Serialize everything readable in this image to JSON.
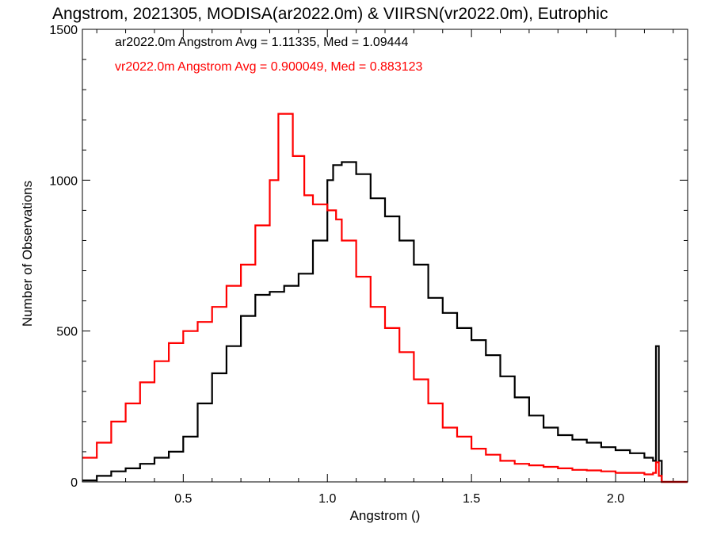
{
  "chart_data": {
    "type": "line",
    "title": "Angstrom, 2021305, MODISA(ar2022.0m) & VIIRSN(vr2022.0m), Eutrophic",
    "xlabel": "Angstrom ()",
    "ylabel": "Number of Observations",
    "xlim": [
      0.15,
      2.25
    ],
    "ylim": [
      0,
      1500
    ],
    "xticks": [
      0.5,
      1.0,
      1.5,
      2.0
    ],
    "xtick_labels": [
      "0.5",
      "1.0",
      "1.5",
      "2.0"
    ],
    "yticks": [
      0,
      500,
      1000,
      1500
    ],
    "ytick_labels": [
      "0",
      "500",
      "1000",
      "1500"
    ],
    "grid": false,
    "step": true,
    "annotations": [
      {
        "text": "ar2022.0m Angstrom Avg = 1.11335, Med = 1.09444",
        "color": "#000000"
      },
      {
        "text": "vr2022.0m Angstrom Avg = 0.900049, Med = 0.883123",
        "color": "#ff0000"
      }
    ],
    "series": [
      {
        "color": "#000000",
        "points": [
          [
            0.15,
            5
          ],
          [
            0.2,
            20
          ],
          [
            0.25,
            35
          ],
          [
            0.3,
            45
          ],
          [
            0.35,
            60
          ],
          [
            0.4,
            80
          ],
          [
            0.45,
            100
          ],
          [
            0.5,
            150
          ],
          [
            0.55,
            260
          ],
          [
            0.6,
            360
          ],
          [
            0.65,
            450
          ],
          [
            0.7,
            550
          ],
          [
            0.75,
            620
          ],
          [
            0.8,
            630
          ],
          [
            0.85,
            650
          ],
          [
            0.9,
            690
          ],
          [
            0.95,
            800
          ],
          [
            1.0,
            1000
          ],
          [
            1.02,
            1050
          ],
          [
            1.05,
            1060
          ],
          [
            1.1,
            1020
          ],
          [
            1.15,
            940
          ],
          [
            1.2,
            880
          ],
          [
            1.25,
            800
          ],
          [
            1.3,
            720
          ],
          [
            1.35,
            610
          ],
          [
            1.4,
            560
          ],
          [
            1.45,
            510
          ],
          [
            1.5,
            470
          ],
          [
            1.55,
            420
          ],
          [
            1.6,
            350
          ],
          [
            1.65,
            280
          ],
          [
            1.7,
            220
          ],
          [
            1.75,
            180
          ],
          [
            1.8,
            155
          ],
          [
            1.85,
            140
          ],
          [
            1.9,
            130
          ],
          [
            1.95,
            115
          ],
          [
            2.0,
            105
          ],
          [
            2.05,
            95
          ],
          [
            2.1,
            80
          ],
          [
            2.13,
            70
          ],
          [
            2.14,
            450
          ],
          [
            2.15,
            70
          ],
          [
            2.16,
            0
          ],
          [
            2.25,
            0
          ]
        ]
      },
      {
        "color": "#ff0000",
        "points": [
          [
            0.15,
            80
          ],
          [
            0.2,
            130
          ],
          [
            0.25,
            200
          ],
          [
            0.3,
            260
          ],
          [
            0.35,
            330
          ],
          [
            0.4,
            400
          ],
          [
            0.45,
            460
          ],
          [
            0.5,
            500
          ],
          [
            0.55,
            530
          ],
          [
            0.6,
            580
          ],
          [
            0.65,
            650
          ],
          [
            0.7,
            720
          ],
          [
            0.75,
            850
          ],
          [
            0.8,
            1000
          ],
          [
            0.83,
            1220
          ],
          [
            0.85,
            1220
          ],
          [
            0.88,
            1080
          ],
          [
            0.92,
            950
          ],
          [
            0.95,
            920
          ],
          [
            1.0,
            900
          ],
          [
            1.03,
            870
          ],
          [
            1.05,
            800
          ],
          [
            1.1,
            680
          ],
          [
            1.15,
            580
          ],
          [
            1.2,
            510
          ],
          [
            1.25,
            430
          ],
          [
            1.3,
            340
          ],
          [
            1.35,
            260
          ],
          [
            1.4,
            180
          ],
          [
            1.45,
            150
          ],
          [
            1.5,
            110
          ],
          [
            1.55,
            90
          ],
          [
            1.6,
            70
          ],
          [
            1.65,
            60
          ],
          [
            1.7,
            55
          ],
          [
            1.75,
            50
          ],
          [
            1.8,
            45
          ],
          [
            1.85,
            40
          ],
          [
            1.9,
            38
          ],
          [
            1.95,
            35
          ],
          [
            2.0,
            30
          ],
          [
            2.05,
            30
          ],
          [
            2.1,
            25
          ],
          [
            2.13,
            30
          ],
          [
            2.14,
            65
          ],
          [
            2.15,
            20
          ],
          [
            2.16,
            0
          ],
          [
            2.25,
            0
          ]
        ]
      }
    ]
  }
}
